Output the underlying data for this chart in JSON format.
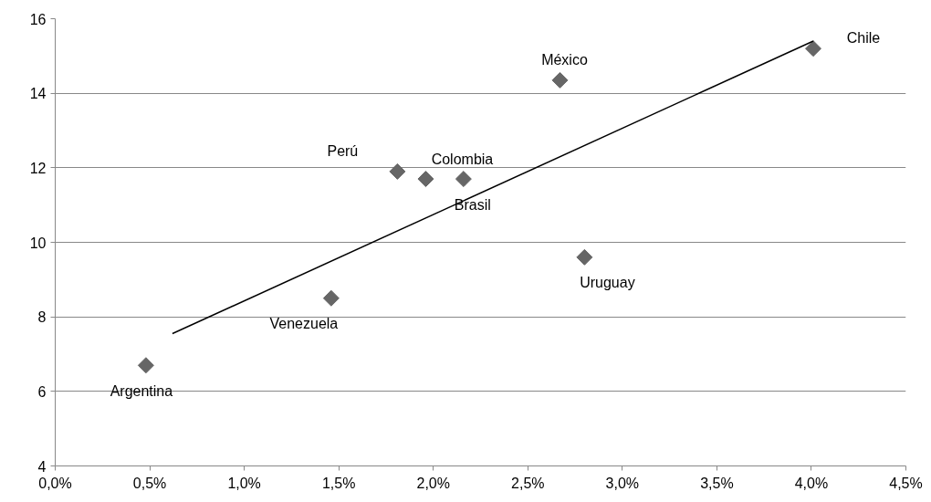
{
  "chart_data": {
    "type": "scatter",
    "marker": "diamond",
    "grid": "y",
    "xlim": [
      0,
      4.5
    ],
    "xticks": [
      {
        "value": 0,
        "label": "0,0%"
      },
      {
        "value": 0.5,
        "label": "0,5%"
      },
      {
        "value": 1,
        "label": "1,0%"
      },
      {
        "value": 1.5,
        "label": "1,5%"
      },
      {
        "value": 2,
        "label": "2,0%"
      },
      {
        "value": 2.5,
        "label": "2,5%"
      },
      {
        "value": 3,
        "label": "3,0%"
      },
      {
        "value": 3.5,
        "label": "3,5%"
      },
      {
        "value": 4,
        "label": "4,0%"
      },
      {
        "value": 4.5,
        "label": "4,5%"
      }
    ],
    "ylim": [
      4,
      16
    ],
    "yticks": [
      4,
      6,
      8,
      10,
      12,
      14,
      16
    ],
    "series": [
      {
        "color": "#666666",
        "x": [
          0.48,
          1.46,
          1.81,
          1.96,
          2.16,
          2.67,
          2.8,
          4.01
        ],
        "values": [
          6.7,
          8.5,
          11.9,
          11.7,
          11.7,
          14.35,
          9.6,
          15.2
        ]
      },
      {
        "type": "line",
        "color": "#000000",
        "line_style": "solid",
        "marker": "none",
        "x": [
          0.62,
          4.01
        ],
        "values": [
          7.55,
          15.4
        ]
      }
    ],
    "annotations": [
      {
        "text": "Argentina",
        "x": 0.48,
        "y": 6.7
      },
      {
        "text": "Venezuela",
        "x": 1.46,
        "y": 8.5
      },
      {
        "text": "Perú",
        "x": 1.81,
        "y": 11.9
      },
      {
        "text": "Colombia",
        "x": 1.96,
        "y": 11.7
      },
      {
        "text": "Brasil",
        "x": 2.16,
        "y": 11.7
      },
      {
        "text": "México",
        "x": 2.67,
        "y": 14.35
      },
      {
        "text": "Uruguay",
        "x": 2.8,
        "y": 9.6
      },
      {
        "text": "Chile",
        "x": 4.01,
        "y": 15.2
      }
    ]
  }
}
